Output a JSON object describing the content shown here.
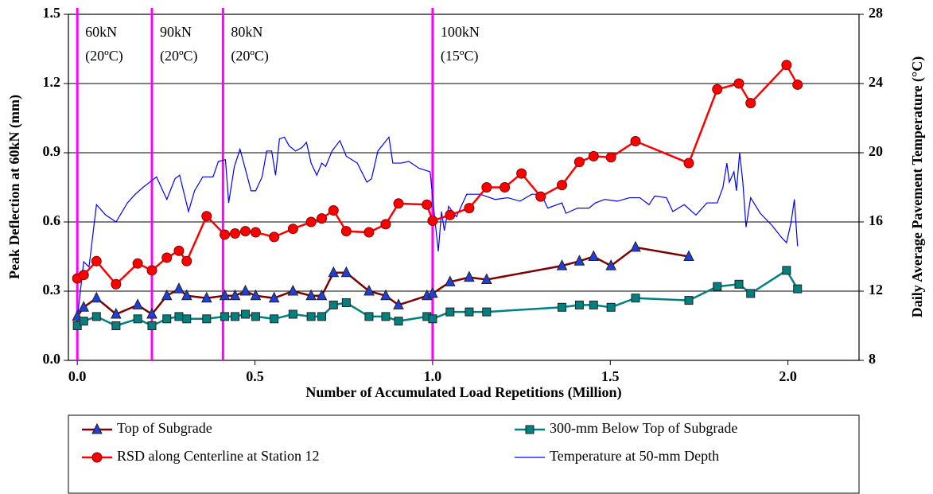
{
  "chart_data": {
    "type": "line",
    "x_label": "Number of Accumulated Load Repetitions (Million)",
    "y_label": "Peak Deflection at 60kN (mm)",
    "y2_label": "Daily Average Pavement Temperature (°C)",
    "xlim": [
      -0.025,
      2.2
    ],
    "xticks": [
      {
        "value": 0,
        "label": "0.0"
      },
      0.5,
      {
        "value": 1,
        "label": "1.0"
      },
      1.5,
      {
        "value": 2,
        "label": "2.0"
      }
    ],
    "ylim": [
      0,
      1.5
    ],
    "yticks": [
      {
        "value": 0,
        "label": "0.0"
      },
      0.3,
      0.6,
      0.9,
      1.2,
      1.5
    ],
    "y2lim": [
      8,
      28
    ],
    "y2ticks": [
      8,
      12,
      16,
      20,
      24,
      28
    ],
    "grid": true,
    "vlines": [
      0,
      0.21,
      0.41,
      1.0
    ],
    "vline_color": "#ff00ff",
    "annotations": [
      [
        "60kN",
        "(20ºC)"
      ],
      [
        "90kN",
        "(20ºC)"
      ],
      [
        "80kN",
        "(20ºC)"
      ],
      [
        "100kN",
        "(15ºC)"
      ]
    ],
    "series": [
      {
        "name": "Top of Subgrade",
        "color": "#800000",
        "marker": "triangle",
        "marker_color": "#1f3fd8",
        "x": [
          0,
          0.018,
          0.054,
          0.109,
          0.17,
          0.21,
          0.252,
          0.286,
          0.308,
          0.364,
          0.415,
          0.444,
          0.473,
          0.502,
          0.554,
          0.607,
          0.658,
          0.688,
          0.721,
          0.757,
          0.821,
          0.868,
          0.904,
          0.984,
          1.0,
          1.049,
          1.103,
          1.152,
          1.364,
          1.413,
          1.453,
          1.502,
          1.571,
          1.721
        ],
        "values": [
          0.19,
          0.23,
          0.27,
          0.2,
          0.24,
          0.2,
          0.28,
          0.31,
          0.28,
          0.27,
          0.28,
          0.28,
          0.3,
          0.28,
          0.27,
          0.3,
          0.28,
          0.28,
          0.38,
          0.38,
          0.3,
          0.28,
          0.24,
          0.28,
          0.29,
          0.34,
          0.36,
          0.35,
          0.41,
          0.43,
          0.45,
          0.41,
          0.49,
          0.45
        ]
      },
      {
        "name": "300-mm Below Top of Subgrade",
        "color": "#008080",
        "marker": "square",
        "marker_color": "#008080",
        "x": [
          0,
          0.018,
          0.054,
          0.109,
          0.17,
          0.21,
          0.252,
          0.286,
          0.308,
          0.364,
          0.415,
          0.444,
          0.473,
          0.502,
          0.554,
          0.607,
          0.658,
          0.688,
          0.721,
          0.757,
          0.821,
          0.868,
          0.904,
          0.984,
          1.0,
          1.049,
          1.103,
          1.152,
          1.364,
          1.413,
          1.453,
          1.502,
          1.571,
          1.721,
          1.801,
          1.862,
          1.895,
          1.996,
          2.027
        ],
        "values": [
          0.15,
          0.17,
          0.19,
          0.15,
          0.18,
          0.15,
          0.18,
          0.19,
          0.18,
          0.18,
          0.19,
          0.19,
          0.2,
          0.19,
          0.18,
          0.2,
          0.19,
          0.19,
          0.24,
          0.25,
          0.19,
          0.19,
          0.17,
          0.19,
          0.18,
          0.21,
          0.21,
          0.21,
          0.23,
          0.24,
          0.24,
          0.23,
          0.27,
          0.26,
          0.32,
          0.33,
          0.29,
          0.39,
          0.31
        ]
      },
      {
        "name": "RSD along Centerline at Station 12",
        "color": "#ff0000",
        "marker": "circle",
        "marker_color": "#ff0000",
        "x": [
          0,
          0.018,
          0.054,
          0.109,
          0.17,
          0.21,
          0.252,
          0.286,
          0.308,
          0.364,
          0.415,
          0.444,
          0.473,
          0.502,
          0.554,
          0.607,
          0.658,
          0.688,
          0.721,
          0.757,
          0.821,
          0.868,
          0.904,
          0.984,
          1.0,
          1.049,
          1.103,
          1.152,
          1.203,
          1.25,
          1.304,
          1.364,
          1.413,
          1.453,
          1.502,
          1.571,
          1.721,
          1.801,
          1.862,
          1.895,
          1.996,
          2.027
        ],
        "values": [
          0.355,
          0.37,
          0.43,
          0.33,
          0.42,
          0.39,
          0.445,
          0.475,
          0.43,
          0.625,
          0.545,
          0.55,
          0.56,
          0.555,
          0.535,
          0.57,
          0.6,
          0.615,
          0.65,
          0.56,
          0.555,
          0.59,
          0.68,
          0.675,
          0.605,
          0.63,
          0.66,
          0.75,
          0.75,
          0.81,
          0.71,
          0.76,
          0.86,
          0.885,
          0.88,
          0.95,
          0.855,
          1.175,
          1.2,
          1.115,
          1.28,
          1.195
        ]
      },
      {
        "name": "Temperature at 50-mm Depth",
        "color": "#0000ff",
        "marker": "none",
        "axis": "y2",
        "x": [
          0,
          0.018,
          0.033,
          0.054,
          0.08,
          0.109,
          0.141,
          0.163,
          0.185,
          0.223,
          0.252,
          0.275,
          0.288,
          0.313,
          0.33,
          0.353,
          0.382,
          0.397,
          0.417,
          0.426,
          0.442,
          0.458,
          0.475,
          0.489,
          0.502,
          0.52,
          0.533,
          0.547,
          0.558,
          0.569,
          0.583,
          0.596,
          0.614,
          0.632,
          0.645,
          0.658,
          0.674,
          0.688,
          0.699,
          0.717,
          0.739,
          0.757,
          0.788,
          0.815,
          0.828,
          0.846,
          0.877,
          0.888,
          0.911,
          0.933,
          0.962,
          0.993,
          1.004,
          1.016,
          1.025,
          1.033,
          1.045,
          1.067,
          1.096,
          1.134,
          1.176,
          1.212,
          1.246,
          1.279,
          1.306,
          1.324,
          1.364,
          1.375,
          1.408,
          1.44,
          1.458,
          1.484,
          1.52,
          1.554,
          1.583,
          1.609,
          1.625,
          1.658,
          1.676,
          1.708,
          1.741,
          1.772,
          1.801,
          1.817,
          1.828,
          1.835,
          1.848,
          1.855,
          1.864,
          1.873,
          1.882,
          1.895,
          1.922,
          1.955,
          1.982,
          1.996,
          2.009,
          2.018,
          2.027
        ],
        "values": [
          10.4,
          13.7,
          13.4,
          17.0,
          16.4,
          16.0,
          17.1,
          17.6,
          18.0,
          18.6,
          17.3,
          18.5,
          18.7,
          16.6,
          17.8,
          18.6,
          18.6,
          19.5,
          19.6,
          17.1,
          19.2,
          20.2,
          18.9,
          17.8,
          17.8,
          18.6,
          20.1,
          20.1,
          18.7,
          20.8,
          20.9,
          20.4,
          20.1,
          20.3,
          20.6,
          19.4,
          18.7,
          19.4,
          19.2,
          20.1,
          20.7,
          19.8,
          19.4,
          18.3,
          18.5,
          20.1,
          20.9,
          19.4,
          19.4,
          19.5,
          19.1,
          18.9,
          16.6,
          14.3,
          16.6,
          15.5,
          16.9,
          16.3,
          17.6,
          17.6,
          17.3,
          17.4,
          17.2,
          17.6,
          17.6,
          16.8,
          17.1,
          16.5,
          16.8,
          16.8,
          17.1,
          17.3,
          17.2,
          17.4,
          17.4,
          17.0,
          17.5,
          17.4,
          16.6,
          17.0,
          16.4,
          17.1,
          17.1,
          18.0,
          19.4,
          18.3,
          18.9,
          17.8,
          20.0,
          18.3,
          15.7,
          17.4,
          16.5,
          15.8,
          15.1,
          14.8,
          16.0,
          17.3,
          14.6
        ]
      }
    ]
  }
}
